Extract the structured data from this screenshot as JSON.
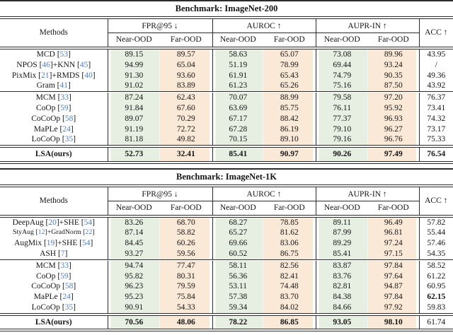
{
  "colors": {
    "near_bg": "#e7eee2",
    "far_bg": "#fbe9d8",
    "ref_blue": "#4d7fc4",
    "rule": "#2b2b2b"
  },
  "tables": [
    {
      "title": "Benchmark: ImageNet-200",
      "header": {
        "methods_label": "Methods",
        "groups": [
          {
            "label": "FPR@95 ↓"
          },
          {
            "label": "AUROC ↑"
          },
          {
            "label": "AUPR-IN ↑"
          }
        ],
        "sub_near": "Near-OOD",
        "sub_far": "Far-OOD",
        "acc_label": "ACC ↑"
      },
      "groups": [
        {
          "rows": [
            {
              "method": [
                {
                  "t": "MCD ["
                },
                {
                  "t": "53",
                  "r": 1
                },
                {
                  "t": "]"
                }
              ],
              "values": [
                "89.15",
                "89.57",
                "58.63",
                "65.07",
                "73.08",
                "89.96",
                "43.95"
              ]
            },
            {
              "method": [
                {
                  "t": "NPOS ["
                },
                {
                  "t": "46",
                  "r": 1
                },
                {
                  "t": "]+KNN ["
                },
                {
                  "t": "45",
                  "r": 1
                },
                {
                  "t": "]"
                }
              ],
              "values": [
                "94.99",
                "65.04",
                "51.19",
                "78.99",
                "69.44",
                "93.24",
                "/"
              ]
            },
            {
              "method": [
                {
                  "t": "PixMix ["
                },
                {
                  "t": "21",
                  "r": 1
                },
                {
                  "t": "]+RMDS ["
                },
                {
                  "t": "40",
                  "r": 1
                },
                {
                  "t": "]"
                }
              ],
              "values": [
                "91.30",
                "93.60",
                "61.91",
                "65.43",
                "74.79",
                "90.35",
                "49.36"
              ]
            },
            {
              "method": [
                {
                  "t": "Gram ["
                },
                {
                  "t": "41",
                  "r": 1
                },
                {
                  "t": "]"
                }
              ],
              "values": [
                "91.02",
                "83.89",
                "61.23",
                "65.26",
                "75.16",
                "87.50",
                "43.92"
              ]
            }
          ]
        },
        {
          "rows": [
            {
              "method": [
                {
                  "t": "MCM ["
                },
                {
                  "t": "33",
                  "r": 1
                },
                {
                  "t": "]"
                }
              ],
              "values": [
                "87.24",
                "62.43",
                "70.07",
                "88.99",
                "79.58",
                "97.20",
                "76.37"
              ]
            },
            {
              "method": [
                {
                  "t": "CoOp ["
                },
                {
                  "t": "59",
                  "r": 1
                },
                {
                  "t": "]"
                }
              ],
              "values": [
                "91.84",
                "67.60",
                "63.69",
                "85.75",
                "76.11",
                "95.92",
                "73.41"
              ]
            },
            {
              "method": [
                {
                  "t": "CoCoOp ["
                },
                {
                  "t": "58",
                  "r": 1
                },
                {
                  "t": "]"
                }
              ],
              "values": [
                "89.07",
                "70.29",
                "67.17",
                "88.42",
                "77.37",
                "96.93",
                "74.32"
              ]
            },
            {
              "method": [
                {
                  "t": "MaPLe ["
                },
                {
                  "t": "24",
                  "r": 1
                },
                {
                  "t": "]"
                }
              ],
              "values": [
                "91.19",
                "72.72",
                "67.28",
                "86.19",
                "79.10",
                "96.27",
                "73.17"
              ]
            },
            {
              "method": [
                {
                  "t": "LoCoOp ["
                },
                {
                  "t": "35",
                  "r": 1
                },
                {
                  "t": "]"
                }
              ],
              "values": [
                "81.18",
                "49.82",
                "70.15",
                "89.10",
                "79.16",
                "96.76",
                "75.33"
              ]
            }
          ]
        }
      ],
      "final_row": {
        "method": [
          {
            "t": "LSA(ours)"
          }
        ],
        "method_bold": true,
        "values": [
          "52.73",
          "32.41",
          "85.41",
          "90.97",
          "90.26",
          "97.49",
          "76.54"
        ],
        "bold_cols": [
          0,
          1,
          2,
          3,
          4,
          5,
          6
        ]
      }
    },
    {
      "title": "Benchmark: ImageNet-1K",
      "header": {
        "methods_label": "Methods",
        "groups": [
          {
            "label": "FPR@95 ↓"
          },
          {
            "label": "AUROC ↑"
          },
          {
            "label": "AUPR-IN ↑"
          }
        ],
        "sub_near": "Near-OOD",
        "sub_far": "Far-OOD",
        "acc_label": "ACC ↑"
      },
      "groups": [
        {
          "rows": [
            {
              "method": [
                {
                  "t": "DeepAug ["
                },
                {
                  "t": "20",
                  "r": 1
                },
                {
                  "t": "]+SHE ["
                },
                {
                  "t": "54",
                  "r": 1
                },
                {
                  "t": "]"
                }
              ],
              "values": [
                "83.26",
                "68.70",
                "68.27",
                "78.85",
                "89.11",
                "96.49",
                "57.82"
              ]
            },
            {
              "method": [
                {
                  "t": "StyAug ["
                },
                {
                  "t": "12",
                  "r": 1
                },
                {
                  "t": "]+GradNorm ["
                },
                {
                  "t": "22",
                  "r": 1
                },
                {
                  "t": "]"
                }
              ],
              "small": true,
              "values": [
                "87.14",
                "58.82",
                "65.27",
                "81.62",
                "87.99",
                "96.81",
                "55.44"
              ]
            },
            {
              "method": [
                {
                  "t": "AugMix ["
                },
                {
                  "t": "19",
                  "r": 1
                },
                {
                  "t": "]+SHE ["
                },
                {
                  "t": "54",
                  "r": 1
                },
                {
                  "t": "]"
                }
              ],
              "values": [
                "84.45",
                "60.26",
                "69.66",
                "83.06",
                "89.29",
                "97.24",
                "57.46"
              ]
            },
            {
              "method": [
                {
                  "t": "ASH ["
                },
                {
                  "t": "7",
                  "r": 1
                },
                {
                  "t": "]"
                }
              ],
              "values": [
                "93.27",
                "59.56",
                "60.52",
                "86.75",
                "85.41",
                "97.15",
                "54.35"
              ]
            }
          ]
        },
        {
          "rows": [
            {
              "method": [
                {
                  "t": "MCM ["
                },
                {
                  "t": "33",
                  "r": 1
                },
                {
                  "t": "]"
                }
              ],
              "values": [
                "94.74",
                "77.47",
                "58.11",
                "82.56",
                "83.87",
                "97.84",
                "58.52"
              ]
            },
            {
              "method": [
                {
                  "t": "CoOp ["
                },
                {
                  "t": "59",
                  "r": 1
                },
                {
                  "t": "]"
                }
              ],
              "values": [
                "95.82",
                "80.31",
                "56.36",
                "82.41",
                "83.76",
                "97.64",
                "61.22"
              ]
            },
            {
              "method": [
                {
                  "t": "CoCoOp ["
                },
                {
                  "t": "58",
                  "r": 1
                },
                {
                  "t": "]"
                }
              ],
              "values": [
                "96.23",
                "79.59",
                "53.11",
                "74.48",
                "82.81",
                "94.87",
                "60.95"
              ]
            },
            {
              "method": [
                {
                  "t": "MaPLe ["
                },
                {
                  "t": "24",
                  "r": 1
                },
                {
                  "t": "]"
                }
              ],
              "values": [
                "95.23",
                "75.84",
                "57.38",
                "83.70",
                "84.38",
                "97.84",
                "62.15"
              ],
              "bold_cols": [
                6
              ]
            },
            {
              "method": [
                {
                  "t": "LoCoOp ["
                },
                {
                  "t": "35",
                  "r": 1
                },
                {
                  "t": "]"
                }
              ],
              "values": [
                "90.91",
                "54.33",
                "59.34",
                "84.02",
                "84.66",
                "97.92",
                "59.83"
              ]
            }
          ]
        }
      ],
      "final_row": {
        "method": [
          {
            "t": "LSA(ours)"
          }
        ],
        "method_bold": true,
        "values": [
          "70.56",
          "48.06",
          "78.22",
          "86.85",
          "93.05",
          "98.10",
          "61.74"
        ],
        "bold_cols": [
          0,
          1,
          2,
          3,
          4,
          5
        ]
      }
    }
  ]
}
